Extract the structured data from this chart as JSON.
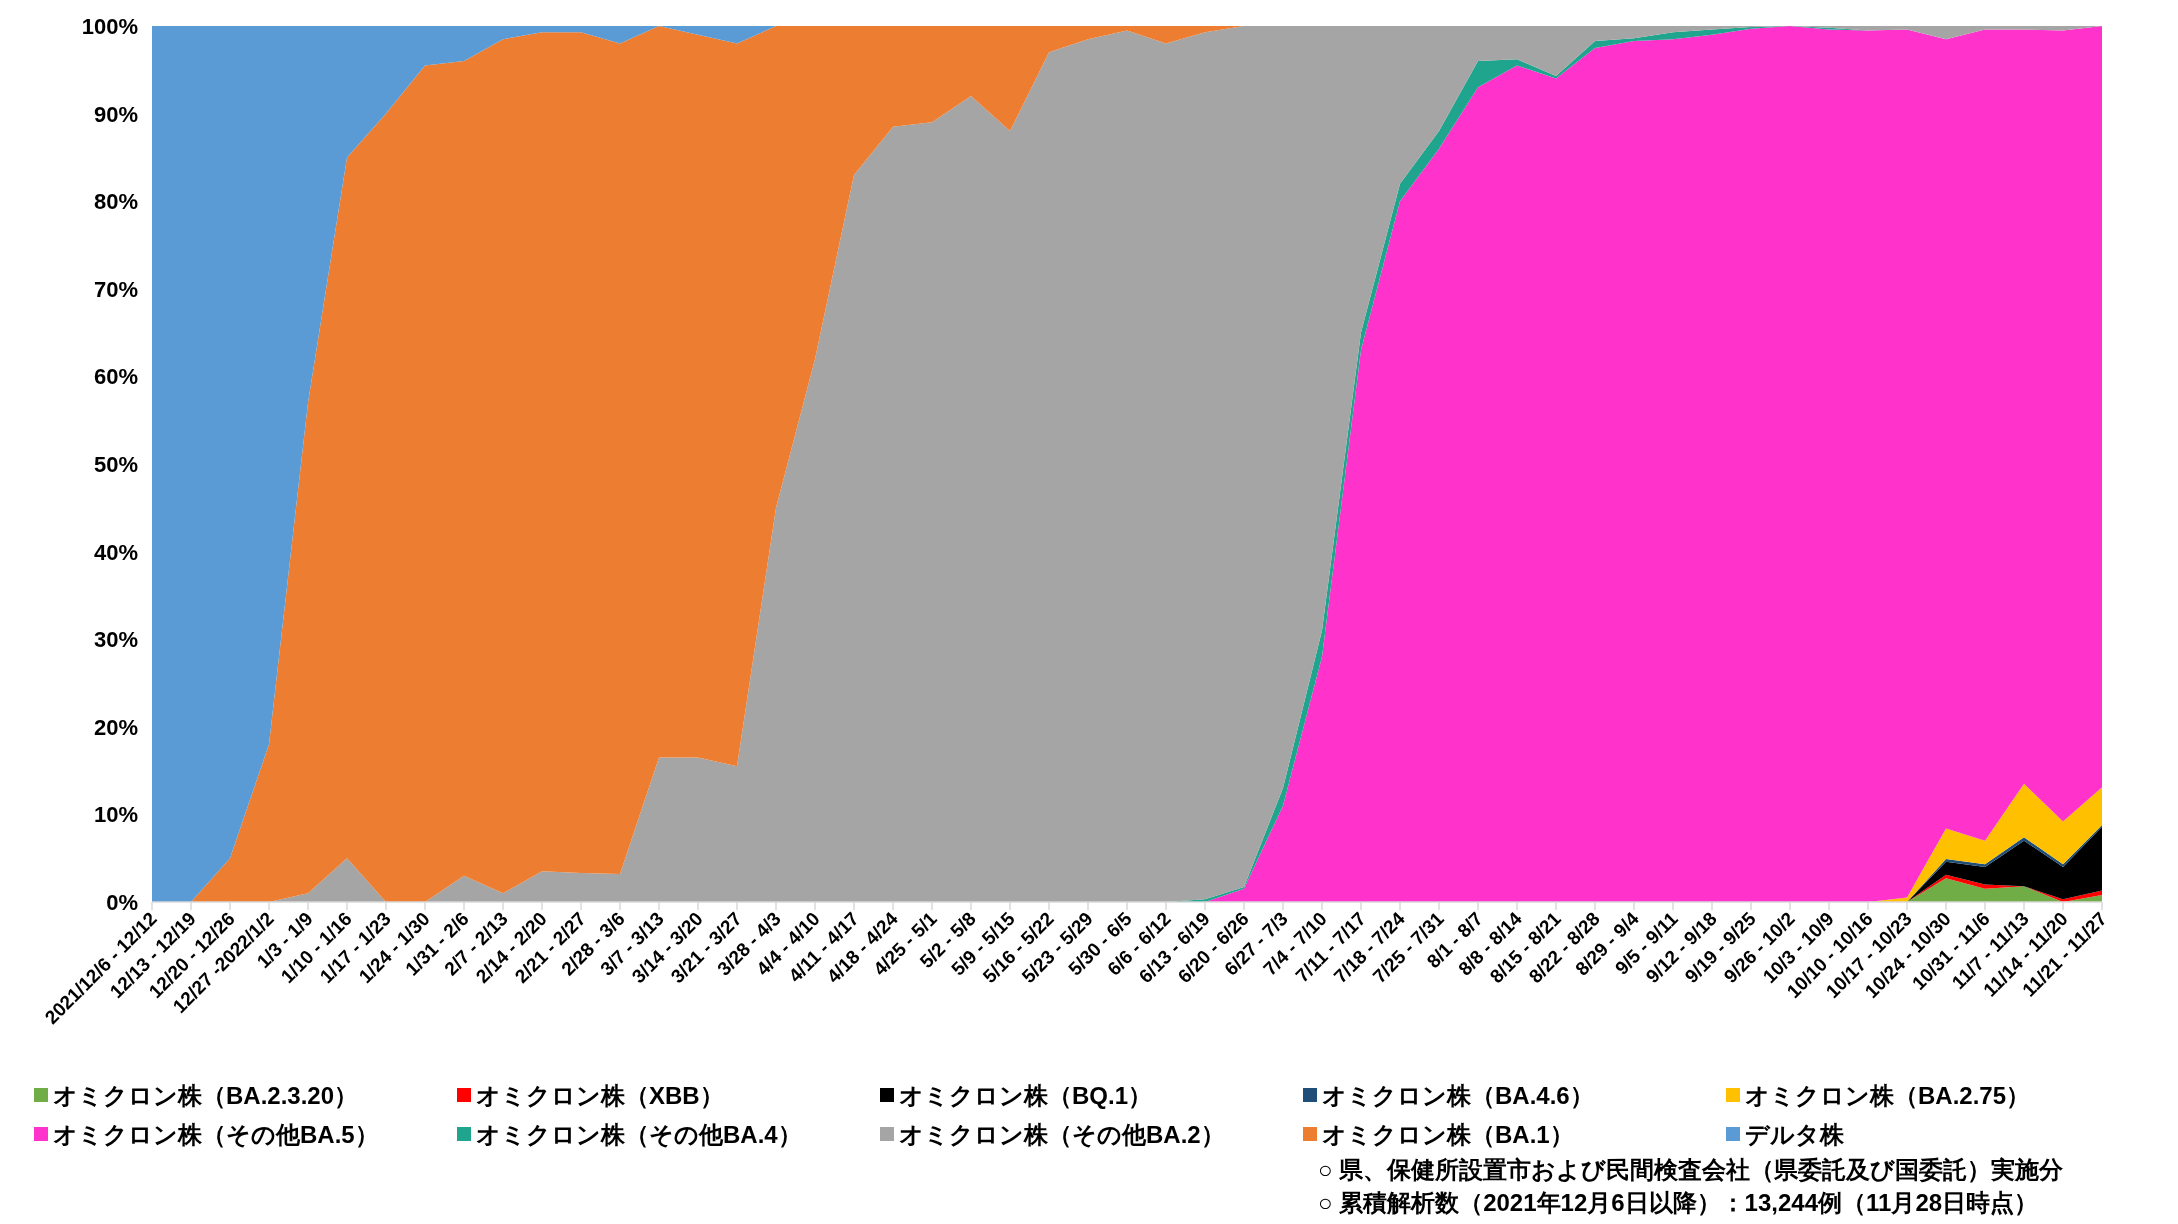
{
  "chart_data": {
    "type": "area",
    "stacked": true,
    "legend": "bottom",
    "categories": [
      "2021/12/6 - 12/12",
      "12/13 - 12/19",
      "12/20 - 12/26",
      "12/27 -2022/1/2",
      "1/3 - 1/9",
      "1/10 - 1/16",
      "1/17 - 1/23",
      "1/24 - 1/30",
      "1/31 - 2/6",
      "2/7 - 2/13",
      "2/14 - 2/20",
      "2/21 - 2/27",
      "2/28 - 3/6",
      "3/7 - 3/13",
      "3/14 - 3/20",
      "3/21 - 3/27",
      "3/28 - 4/3",
      "4/4 - 4/10",
      "4/11 - 4/17",
      "4/18 - 4/24",
      "4/25 - 5/1",
      "5/2 - 5/8",
      "5/9 - 5/15",
      "5/16 - 5/22",
      "5/23 - 5/29",
      "5/30 - 6/5",
      "6/6 - 6/12",
      "6/13 - 6/19",
      "6/20 - 6/26",
      "6/27 - 7/3",
      "7/4 - 7/10",
      "7/11 - 7/17",
      "7/18 - 7/24",
      "7/25 - 7/31",
      "8/1 - 8/7",
      "8/8 - 8/14",
      "8/15 - 8/21",
      "8/22 - 8/28",
      "8/29 - 9/4",
      "9/5 - 9/11",
      "9/12 - 9/18",
      "9/19 - 9/25",
      "9/26 - 10/2",
      "10/3 - 10/9",
      "10/10 - 10/16",
      "10/17 - 10/23",
      "10/24 - 10/30",
      "10/31 - 11/6",
      "11/7 - 11/13",
      "11/14 - 11/20",
      "11/21 - 11/27"
    ],
    "ylim": [
      0,
      100
    ],
    "yticks": [
      {
        "value": 0,
        "label": "0%"
      },
      {
        "value": 10,
        "label": "10%"
      },
      {
        "value": 20,
        "label": "20%"
      },
      {
        "value": 30,
        "label": "30%"
      },
      {
        "value": 40,
        "label": "40%"
      },
      {
        "value": 50,
        "label": "50%"
      },
      {
        "value": 60,
        "label": "60%"
      },
      {
        "value": 70,
        "label": "70%"
      },
      {
        "value": 80,
        "label": "80%"
      },
      {
        "value": 90,
        "label": "90%"
      },
      {
        "value": 100,
        "label": "100%"
      }
    ],
    "series": [
      {
        "name": "オミクロン株（BA.2.3.20）",
        "color": "#70ad47",
        "values": [
          null,
          null,
          null,
          null,
          null,
          null,
          null,
          null,
          null,
          null,
          null,
          null,
          null,
          null,
          null,
          null,
          null,
          null,
          null,
          null,
          null,
          null,
          null,
          null,
          null,
          null,
          null,
          null,
          null,
          null,
          null,
          null,
          null,
          null,
          null,
          null,
          null,
          null,
          null,
          null,
          null,
          null,
          null,
          null,
          null,
          0,
          2.7,
          1.5,
          1.8,
          0,
          0.8
        ]
      },
      {
        "name": "オミクロン株（XBB）",
        "color": "#ff0000",
        "values": [
          null,
          null,
          null,
          null,
          null,
          null,
          null,
          null,
          null,
          null,
          null,
          null,
          null,
          null,
          null,
          null,
          null,
          null,
          null,
          null,
          null,
          null,
          null,
          null,
          null,
          null,
          null,
          null,
          null,
          null,
          null,
          null,
          null,
          null,
          null,
          null,
          null,
          null,
          null,
          null,
          null,
          null,
          null,
          null,
          null,
          0,
          0.4,
          0.5,
          0,
          0.3,
          0.5
        ]
      },
      {
        "name": "オミクロン株（BQ.1）",
        "color": "#000000",
        "values": [
          null,
          null,
          null,
          null,
          null,
          null,
          null,
          null,
          null,
          null,
          null,
          null,
          null,
          null,
          null,
          null,
          null,
          null,
          null,
          null,
          null,
          null,
          null,
          null,
          null,
          null,
          null,
          null,
          null,
          null,
          null,
          null,
          null,
          null,
          null,
          null,
          null,
          null,
          null,
          null,
          null,
          null,
          null,
          null,
          null,
          0,
          1.5,
          2.0,
          5.2,
          3.7,
          7.3
        ]
      },
      {
        "name": "オミクロン株（BA.4.6）",
        "color": "#1f4e79",
        "values": [
          null,
          null,
          null,
          null,
          null,
          null,
          null,
          null,
          null,
          null,
          null,
          null,
          null,
          null,
          null,
          null,
          null,
          null,
          null,
          null,
          null,
          null,
          null,
          null,
          null,
          null,
          null,
          null,
          null,
          null,
          null,
          null,
          null,
          null,
          null,
          null,
          null,
          null,
          null,
          null,
          null,
          null,
          null,
          null,
          null,
          0,
          0.3,
          0.3,
          0.4,
          0.3,
          0.2
        ]
      },
      {
        "name": "オミクロン株（BA.2.75）",
        "color": "#ffc000",
        "values": [
          null,
          null,
          null,
          null,
          null,
          null,
          null,
          null,
          null,
          null,
          null,
          null,
          null,
          null,
          null,
          null,
          null,
          null,
          null,
          null,
          null,
          null,
          null,
          null,
          null,
          null,
          null,
          null,
          null,
          null,
          null,
          null,
          null,
          null,
          null,
          null,
          null,
          null,
          null,
          null,
          null,
          null,
          null,
          null,
          0,
          0.5,
          3.5,
          2.7,
          6.1,
          4.9,
          4.3
        ]
      },
      {
        "name": "オミクロン株（その他BA.5）",
        "color": "#ff33cc",
        "values": [
          null,
          null,
          null,
          null,
          null,
          null,
          null,
          null,
          null,
          null,
          null,
          null,
          null,
          null,
          null,
          null,
          null,
          null,
          null,
          null,
          null,
          null,
          null,
          null,
          null,
          null,
          null,
          0,
          1.5,
          11,
          28,
          63,
          80,
          86,
          93,
          95.5,
          94,
          97.5,
          98.3,
          98.5,
          99,
          99.7,
          100,
          99.6,
          99.5,
          99.1,
          90.1,
          92.6,
          86.1,
          90.3,
          86.9
        ]
      },
      {
        "name": "オミクロン株（その他BA.4）",
        "color": "#1fa58e",
        "values": [
          null,
          null,
          null,
          null,
          null,
          null,
          null,
          null,
          null,
          null,
          null,
          null,
          null,
          null,
          null,
          null,
          null,
          null,
          null,
          null,
          null,
          null,
          null,
          null,
          null,
          null,
          0,
          0.3,
          0.2,
          2,
          3,
          2,
          2,
          2,
          3,
          0.7,
          0.3,
          0.8,
          0.3,
          0.8,
          0.6,
          0.2,
          0,
          0.2,
          0,
          null,
          null,
          null,
          null,
          null,
          null
        ]
      },
      {
        "name": "オミクロン株（その他BA.2）",
        "color": "#a5a5a5",
        "values": [
          0,
          0,
          0,
          0,
          1,
          5,
          0,
          0,
          3,
          1,
          3.5,
          3.3,
          3.2,
          16.5,
          16.5,
          15.5,
          45,
          62,
          83,
          88.5,
          89,
          92,
          88,
          97,
          98.5,
          99.5,
          98,
          99,
          98.3,
          87,
          69,
          35,
          18,
          12,
          4,
          3.8,
          5.7,
          1.7,
          1.4,
          0.7,
          0.4,
          0.1,
          0,
          0.2,
          0.5,
          0.4,
          1.5,
          0.4,
          0.4,
          0.5,
          0
        ]
      },
      {
        "name": "オミクロン株（BA.1）",
        "color": "#ed7d31",
        "values": [
          null,
          0,
          5,
          18,
          56,
          80,
          90,
          95.5,
          93,
          97.5,
          95.8,
          96,
          94.8,
          83.5,
          82.5,
          82.5,
          55,
          38,
          17,
          11.5,
          11,
          8,
          12,
          3,
          1.5,
          0.5,
          2,
          0.7,
          0,
          null,
          null,
          null,
          null,
          null,
          null,
          null,
          null,
          null,
          null,
          null,
          null,
          null,
          null,
          null,
          null,
          null,
          null,
          null,
          null,
          null,
          null
        ]
      },
      {
        "name": "デルタ株",
        "color": "#5b9bd5",
        "values": [
          100,
          100,
          95,
          82,
          43,
          15,
          10,
          4.5,
          4,
          1.5,
          0.7,
          0.7,
          2,
          0,
          1,
          2,
          0,
          null,
          null,
          null,
          null,
          null,
          null,
          null,
          null,
          null,
          null,
          null,
          null,
          null,
          null,
          null,
          null,
          null,
          null,
          null,
          null,
          null,
          null,
          null,
          null,
          null,
          null,
          null,
          null,
          null,
          null,
          null,
          null,
          null,
          null
        ]
      }
    ],
    "annotations": [
      "○ 県、保健所設置市および民間検査会社（県委託及び国委託）実施分",
      "○ 累積解析数（2021年12月6日以降）：13,244例（11月28日時点）"
    ]
  }
}
